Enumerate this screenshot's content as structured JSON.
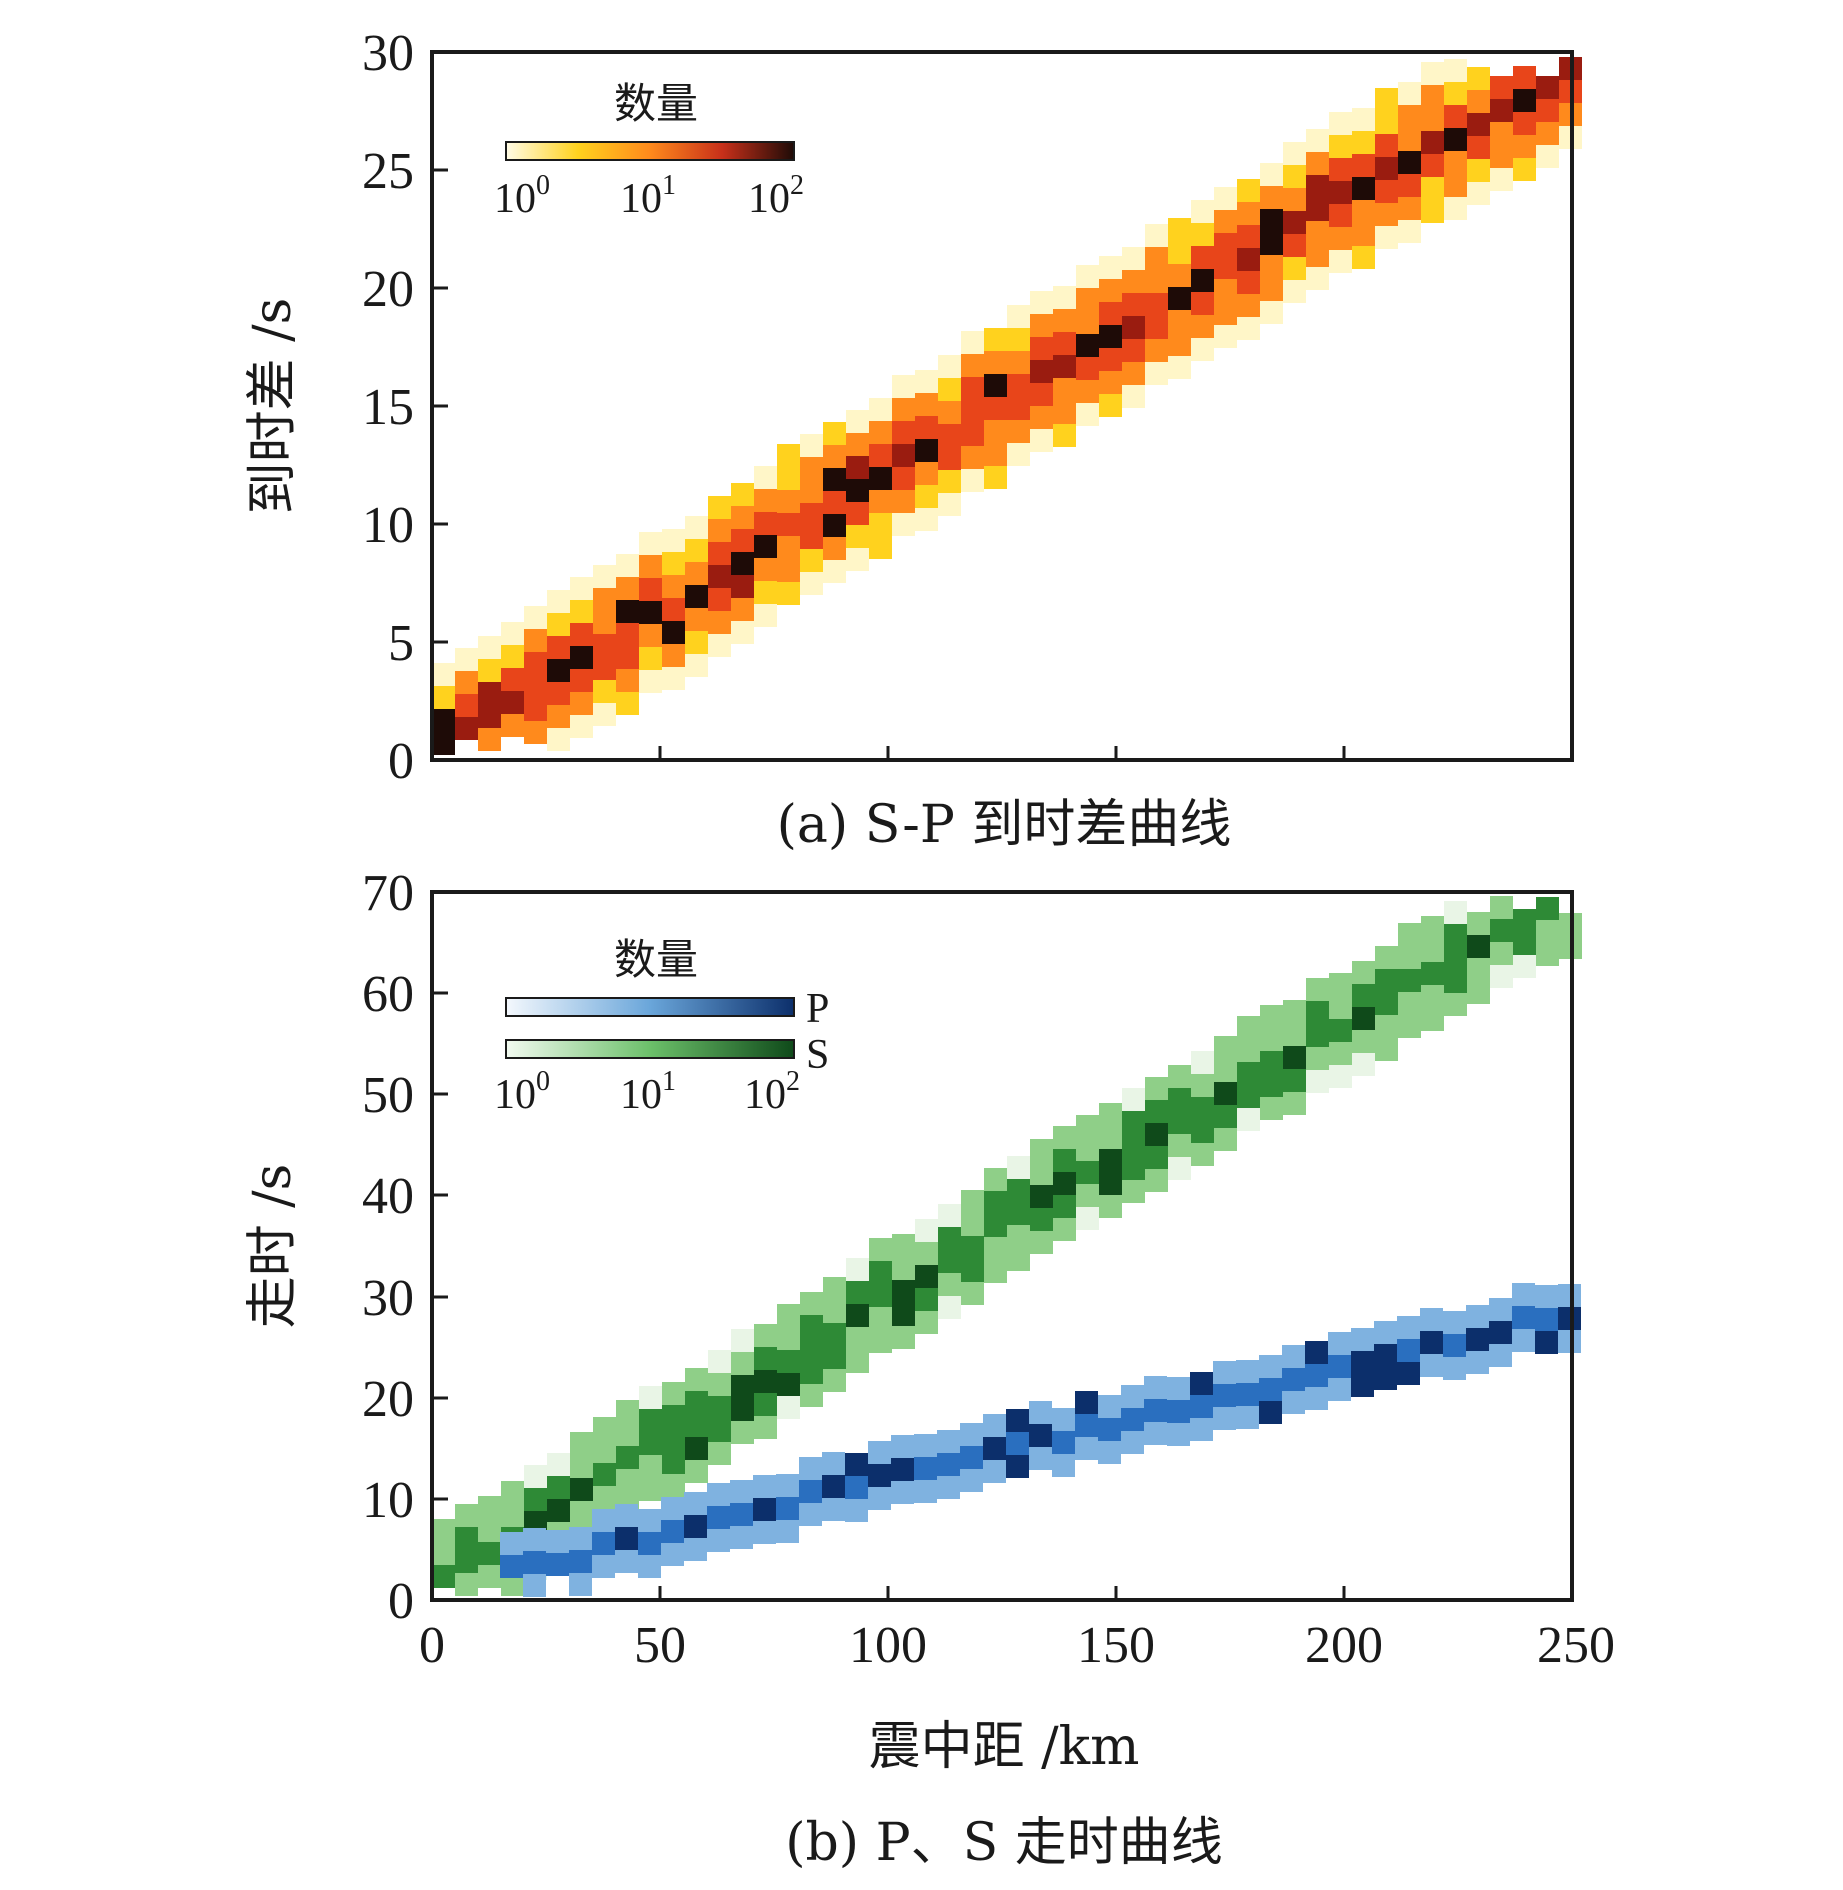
{
  "chart_data": [
    {
      "panel": "a",
      "type": "heatmap",
      "caption": "(a) S-P 到时差曲线",
      "xlabel": "",
      "ylabel": "到时差 /s",
      "xlim": [
        0,
        250
      ],
      "ylim": [
        0,
        30
      ],
      "xticks": [
        0,
        50,
        100,
        150,
        200,
        250
      ],
      "yticks": [
        "0",
        "5",
        "10",
        "15",
        "20",
        "25",
        "30"
      ],
      "colorbar": {
        "title": "数量",
        "ticks": [
          "10",
          "10",
          "10"
        ],
        "exponents": [
          "0",
          "1",
          "2"
        ],
        "scale": "log",
        "range": [
          1,
          100
        ],
        "colormap": "hot_r"
      },
      "trend": {
        "x": [
          0,
          50,
          100,
          150,
          200,
          250
        ],
        "y": [
          0.4,
          6.2,
          12.4,
          18.1,
          23.9,
          29.2
        ]
      },
      "colors": {
        "low": "#fff6c8",
        "mid_low": "#ffd21e",
        "mid": "#ff8a1c",
        "mid_high": "#e8451a",
        "high": "#9a1c10",
        "max": "#1e0b07"
      }
    },
    {
      "panel": "b",
      "type": "heatmap",
      "caption": "(b) P、S 走时曲线",
      "xlabel": "震中距 /km",
      "ylabel": "走时 /s",
      "xlim": [
        0,
        250
      ],
      "ylim": [
        0,
        70
      ],
      "xticks": [
        "0",
        "50",
        "100",
        "150",
        "200",
        "250"
      ],
      "yticks": [
        "0",
        "10",
        "20",
        "30",
        "40",
        "50",
        "60",
        "70"
      ],
      "colorbar": {
        "title": "数量",
        "series_labels": [
          "P",
          "S"
        ],
        "ticks": [
          "10",
          "10",
          "10"
        ],
        "exponents": [
          "0",
          "1",
          "2"
        ],
        "scale": "log",
        "range": [
          1,
          100
        ]
      },
      "series": [
        {
          "name": "S",
          "x": [
            0,
            50,
            100,
            150,
            200,
            250
          ],
          "y": [
            1.0,
            15.5,
            30.0,
            44.0,
            57.0,
            69.5
          ],
          "colors": {
            "low": "#e9f5e6",
            "mid": "#8fcf88",
            "high": "#2e8a36",
            "max": "#0f4a1a"
          }
        },
        {
          "name": "P",
          "x": [
            15,
            50,
            100,
            150,
            200,
            250
          ],
          "y": [
            2.5,
            6.5,
            12.0,
            17.5,
            23.0,
            28.5
          ],
          "colors": {
            "low": "#e6f0fa",
            "mid": "#7fb2e0",
            "high": "#2a6fbf",
            "max": "#0c2f6b"
          }
        }
      ]
    }
  ]
}
